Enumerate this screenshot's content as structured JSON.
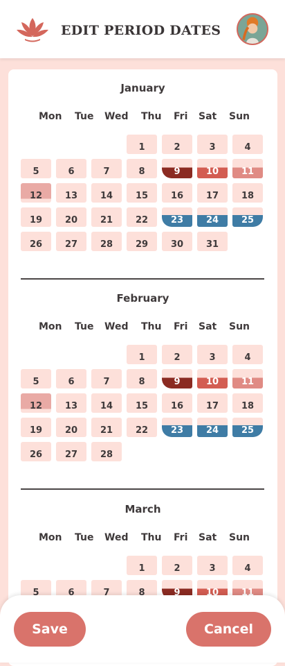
{
  "header": {
    "title": "EDIT PERIOD DATES",
    "brand_color": "#d9736b"
  },
  "weekdays": [
    "Mon",
    "Tue",
    "Wed",
    "Thu",
    "Fri",
    "Sat",
    "Sun"
  ],
  "legend_colors": {
    "period_heavy": "#8b2b22",
    "period_medium": "#d35d52",
    "period_light": "#e08b84",
    "period_spotting": "#e9aaa5",
    "fertile_window": "#3f7ca5",
    "day_background": "#fde0da"
  },
  "months": [
    {
      "name": "January",
      "start_weekday": 3,
      "days": 31,
      "marked": {
        "9": "p1",
        "10": "p2",
        "11": "p3",
        "12": "p4",
        "23": "o1",
        "24": "o2",
        "25": "o3"
      }
    },
    {
      "name": "February",
      "start_weekday": 3,
      "days": 28,
      "marked": {
        "9": "p1",
        "10": "p2",
        "11": "p3",
        "12": "p4",
        "23": "o1",
        "24": "o2",
        "25": "o3"
      }
    },
    {
      "name": "March",
      "start_weekday": 3,
      "days": 11,
      "marked": {
        "9": "p1",
        "10": "p2",
        "11": "p3"
      }
    }
  ],
  "footer": {
    "save_label": "Save",
    "cancel_label": "Cancel"
  }
}
